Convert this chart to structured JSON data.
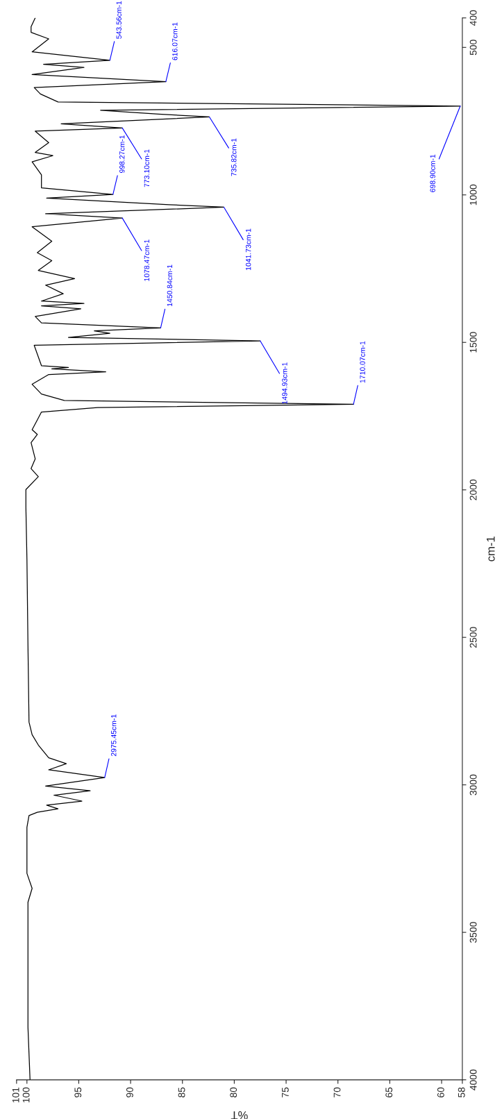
{
  "chart_data": {
    "type": "line",
    "xlabel": "%T",
    "ylabel": "cm-1",
    "ylim": [
      4000,
      400
    ],
    "yticks": [
      400,
      500,
      1000,
      1500,
      2000,
      2500,
      3000,
      3500,
      4000
    ],
    "xlim": [
      101,
      58
    ],
    "xticks": [
      101,
      100,
      95,
      90,
      85,
      80,
      75,
      70,
      65,
      60,
      58
    ],
    "series": [
      {
        "color": "#000000",
        "values": [
          400,
          430,
          449,
          471,
          515,
          543.56,
          557,
          568,
          592,
          616.07,
          636,
          658,
          685,
          698.9,
          713,
          726,
          735.82,
          759,
          773.1,
          784,
          823,
          856,
          867,
          888,
          932,
          976,
          998.27,
          1011,
          1033,
          1041.73,
          1064,
          1078.47,
          1108,
          1157,
          1196,
          1223,
          1256,
          1284,
          1306,
          1335,
          1360,
          1368,
          1376,
          1386,
          1412,
          1434,
          1450.84,
          1461,
          1469,
          1483,
          1494.93,
          1510,
          1579,
          1585,
          1590,
          1600,
          1609,
          1642,
          1675,
          1697,
          1710.07,
          1721,
          1736,
          1763,
          1796,
          1812,
          1840,
          1895,
          1928,
          1955,
          1999,
          2059,
          2235,
          2528,
          2787,
          2830,
          2865,
          2908,
          2928,
          2949,
          2975.45,
          3004,
          3020,
          3035,
          3055,
          3069,
          3081,
          3093,
          3104,
          3144,
          3300,
          3351,
          3398,
          3822,
          4000
        ],
        "x": [
          99.2,
          99.6,
          99.6,
          97.9,
          99.5,
          92.0,
          98.4,
          94.5,
          99.5,
          86.6,
          99.3,
          98.7,
          97.0,
          58.2,
          92.9,
          87.3,
          82.4,
          96.7,
          90.8,
          99.2,
          97.9,
          99.2,
          97.5,
          99.5,
          98.6,
          98.6,
          91.7,
          98.1,
          86.3,
          81.0,
          98.2,
          90.8,
          99.5,
          97.6,
          99.0,
          97.6,
          98.9,
          95.4,
          98.2,
          96.5,
          98.6,
          94.5,
          98.6,
          94.8,
          99.2,
          98.6,
          87.1,
          93.5,
          92.0,
          96.0,
          77.5,
          99.3,
          98.6,
          96.0,
          97.6,
          92.4,
          97.9,
          99.5,
          98.6,
          96.4,
          68.5,
          93.2,
          98.6,
          99.0,
          99.5,
          99.0,
          99.6,
          99.2,
          99.6,
          98.9,
          100.1,
          100.1,
          100.0,
          99.9,
          99.8,
          99.5,
          98.9,
          97.9,
          96.2,
          97.9,
          92.5,
          98.2,
          93.9,
          97.4,
          94.7,
          98.1,
          97.0,
          99.0,
          99.8,
          100.0,
          100.0,
          99.5,
          99.9,
          99.9,
          99.7
        ]
      }
    ],
    "annotations": [
      {
        "text": "543.56cm-1",
        "y": 543.56,
        "x": 92.0
      },
      {
        "text": "616.07cm-1",
        "y": 616.07,
        "x": 86.6
      },
      {
        "text": "698.90cm-1",
        "y": 698.9,
        "x": 58.2
      },
      {
        "text": "735.82cm-1",
        "y": 735.82,
        "x": 82.4
      },
      {
        "text": "773.10cm-1",
        "y": 773.1,
        "x": 90.8
      },
      {
        "text": "998.27cm-1",
        "y": 998.27,
        "x": 91.7
      },
      {
        "text": "1041.73cm-1",
        "y": 1041.73,
        "x": 81.0
      },
      {
        "text": "1078.47cm-1",
        "y": 1078.47,
        "x": 90.8
      },
      {
        "text": "1450.84cm-1",
        "y": 1450.84,
        "x": 87.1
      },
      {
        "text": "1494.93cm-1",
        "y": 1494.93,
        "x": 77.5
      },
      {
        "text": "1710.07cm-1",
        "y": 1710.07,
        "x": 68.5
      },
      {
        "text": "2975.45cm-1",
        "y": 2975.45,
        "x": 92.5
      }
    ]
  }
}
